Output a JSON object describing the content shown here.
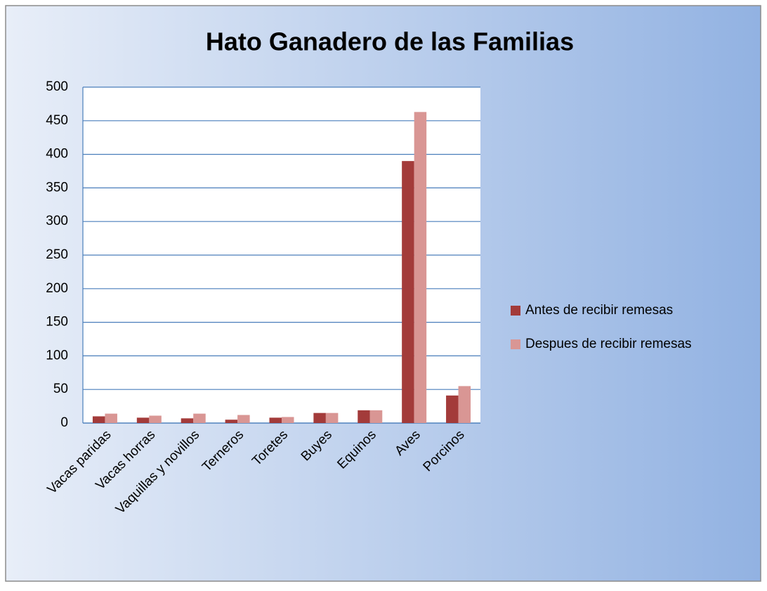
{
  "chart_data": {
    "type": "bar",
    "title": "Hato Ganadero de las Familias",
    "categories": [
      "Vacas paridas",
      "Vacas horras",
      "Vaquillas y novillos",
      "Terneros",
      "Toretes",
      "Buyes",
      "Equinos",
      "Aves",
      "Porcinos"
    ],
    "series": [
      {
        "name": "Antes de recibir remesas",
        "color": "#a33b3a",
        "values": [
          10,
          8,
          7,
          5,
          8,
          15,
          19,
          390,
          41
        ]
      },
      {
        "name": "Despues de recibir remesas",
        "color": "#d99694",
        "values": [
          14,
          11,
          14,
          12,
          9,
          15,
          19,
          463,
          55
        ]
      }
    ],
    "ylim": [
      0,
      500
    ],
    "yticks": [
      0,
      50,
      100,
      150,
      200,
      250,
      300,
      350,
      400,
      450,
      500
    ],
    "grid": true,
    "legend": "right"
  }
}
